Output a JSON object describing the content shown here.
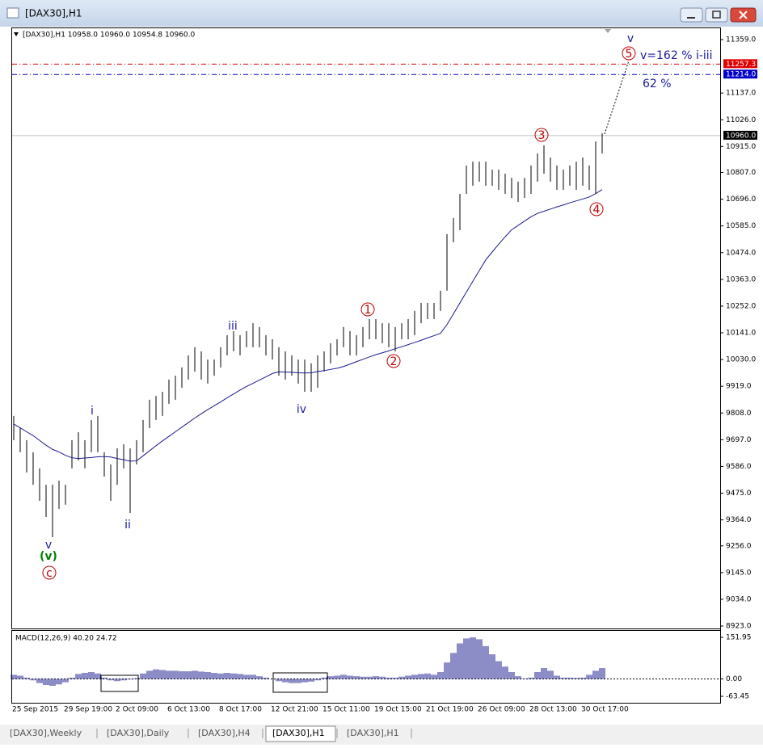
{
  "window": {
    "title": "[DAX30],H1"
  },
  "tabs": [
    "[DAX30],Weekly",
    "[DAX30],Daily",
    "[DAX30],H4",
    "[DAX30],H1",
    "[DAX30],H1"
  ],
  "active_tab": 3,
  "chart_data": [
    {
      "type": "ohlc-bar",
      "header": "[DAX30],H1  10958.0 10960.0 10954.8 10960.0",
      "color": "#000000",
      "ma_color": "#1a1a8c",
      "categories": [
        "25 Sep 2015",
        null,
        null,
        null,
        null,
        null,
        null,
        null,
        "29 Sep 19:00",
        null,
        null,
        null,
        null,
        null,
        null,
        null,
        "2 Oct 09:00",
        null,
        null,
        null,
        null,
        null,
        null,
        null,
        "6 Oct 13:00",
        null,
        null,
        null,
        null,
        null,
        null,
        null,
        "8 Oct 17:00",
        null,
        null,
        null,
        null,
        null,
        null,
        null,
        "12 Oct 21:00",
        null,
        null,
        null,
        null,
        null,
        null,
        null,
        "15 Oct 11:00",
        null,
        null,
        null,
        null,
        null,
        null,
        null,
        "19 Oct 15:00",
        null,
        null,
        null,
        null,
        null,
        null,
        null,
        "21 Oct 19:00",
        null,
        null,
        null,
        null,
        null,
        null,
        null,
        "26 Oct 09:00",
        null,
        null,
        null,
        null,
        null,
        null,
        null,
        "28 Oct 13:00",
        null,
        null,
        null,
        null,
        null,
        null,
        null,
        "30 Oct 17:00",
        null,
        null,
        null
      ],
      "high": [
        9796,
        9745,
        9695,
        9645,
        9578,
        9510,
        9510,
        9527,
        9510,
        9695,
        9728,
        9695,
        9779,
        9796,
        9645,
        9594,
        9661,
        9678,
        9661,
        9695,
        9779,
        9863,
        9879,
        9896,
        9947,
        9963,
        9997,
        10047,
        10081,
        10064,
        10030,
        10030,
        10081,
        10131,
        10148,
        10131,
        10148,
        10181,
        10165,
        10131,
        10114,
        10081,
        10064,
        10047,
        10030,
        10030,
        10014,
        10047,
        10064,
        10098,
        10114,
        10165,
        10148,
        10131,
        10165,
        10198,
        10198,
        10181,
        10181,
        10165,
        10181,
        10198,
        10232,
        10265,
        10265,
        10265,
        10316,
        10551,
        10618,
        10718,
        10836,
        10852,
        10852,
        10852,
        10819,
        10819,
        10802,
        10785,
        10769,
        10785,
        10836,
        10886,
        10920,
        10869,
        10836,
        10819,
        10836,
        10852,
        10869,
        10836,
        10936,
        10970
      ],
      "low": [
        9695,
        9645,
        9561,
        9510,
        9443,
        9376,
        9292,
        9410,
        9427,
        9578,
        9611,
        9578,
        9645,
        9645,
        9544,
        9443,
        9510,
        9578,
        9393,
        9594,
        9645,
        9745,
        9779,
        9796,
        9846,
        9863,
        9913,
        9947,
        9980,
        9947,
        9930,
        9963,
        9997,
        10047,
        10064,
        10047,
        10081,
        10081,
        10081,
        10047,
        10030,
        9963,
        9947,
        9963,
        9930,
        9896,
        9896,
        9913,
        9980,
        10014,
        10047,
        10081,
        10047,
        10047,
        10081,
        10114,
        10114,
        10098,
        10081,
        10064,
        10114,
        10114,
        10131,
        10181,
        10198,
        10198,
        10232,
        10316,
        10517,
        10567,
        10718,
        10752,
        10769,
        10752,
        10752,
        10735,
        10718,
        10701,
        10685,
        10701,
        10718,
        10769,
        10802,
        10769,
        10735,
        10735,
        10752,
        10735,
        10752,
        10735,
        10718,
        10886
      ],
      "ma": [
        9762,
        9746,
        9730,
        9714,
        9694,
        9674,
        9657,
        9646,
        9632,
        9622,
        9619,
        9621,
        9623,
        9626,
        9627,
        9625,
        9619,
        9614,
        9608,
        9609,
        9630,
        9651,
        9672,
        9692,
        9711,
        9730,
        9749,
        9768,
        9787,
        9805,
        9822,
        9838,
        9854,
        9871,
        9887,
        9903,
        9918,
        9931,
        9945,
        9958,
        9972,
        9979,
        9978,
        9977,
        9975,
        9974,
        9975,
        9980,
        9984,
        9989,
        9994,
        10001,
        10011,
        10021,
        10031,
        10041,
        10050,
        10058,
        10066,
        10075,
        10083,
        10092,
        10101,
        10110,
        10120,
        10129,
        10139,
        10175,
        10220,
        10265,
        10310,
        10355,
        10400,
        10444,
        10477,
        10509,
        10540,
        10569,
        10587,
        10605,
        10623,
        10637,
        10646,
        10655,
        10664,
        10672,
        10681,
        10689,
        10697,
        10705,
        10719,
        10736
      ],
      "ylim": [
        8913,
        11406
      ],
      "yticks": [
        {
          "value": 11359,
          "label": "11359.0"
        },
        {
          "value": 11137,
          "label": "11137.0"
        },
        {
          "value": 11026,
          "label": "11026.0"
        },
        {
          "value": 10915,
          "label": "10915.0"
        },
        {
          "value": 10807,
          "label": "10807.0"
        },
        {
          "value": 10696,
          "label": "10696.0"
        },
        {
          "value": 10585,
          "label": "10585.0"
        },
        {
          "value": 10474,
          "label": "10474.0"
        },
        {
          "value": 10363,
          "label": "10363.0"
        },
        {
          "value": 10252,
          "label": "10252.0"
        },
        {
          "value": 10141,
          "label": "10141.0"
        },
        {
          "value": 10030,
          "label": "10030.0"
        },
        {
          "value": 9919,
          "label": "9919.0"
        },
        {
          "value": 9808,
          "label": "9808.0"
        },
        {
          "value": 9697,
          "label": "9697.0"
        },
        {
          "value": 9586,
          "label": "9586.0"
        },
        {
          "value": 9475,
          "label": "9475.0"
        },
        {
          "value": 9364,
          "label": "9364.0"
        },
        {
          "value": 9256,
          "label": "9256.0"
        },
        {
          "value": 9145,
          "label": "9145.0"
        },
        {
          "value": 9034,
          "label": "9034.0"
        },
        {
          "value": 8923,
          "label": "8923.0"
        }
      ],
      "price_lines": [
        {
          "value": 11257.3,
          "label": "11257.3",
          "color": "#e00000"
        },
        {
          "value": 11214,
          "label": "11214.0",
          "color": "#0000c8"
        },
        {
          "value": 10960,
          "label": "10960.0",
          "color": "#000000"
        }
      ],
      "annotations": [
        {
          "text": "v",
          "color": "#1a1aa0"
        },
        {
          "text": "5",
          "color": "#c00000"
        },
        {
          "text": "v=162 % i-iii",
          "color": "#1a1aa0"
        },
        {
          "text": "62 %",
          "color": "#1a1aa0"
        },
        {
          "text": "3",
          "color": "#c00000"
        },
        {
          "text": "4",
          "color": "#c00000"
        },
        {
          "text": "1",
          "color": "#c00000"
        },
        {
          "text": "2",
          "color": "#c00000"
        },
        {
          "text": "iii",
          "color": "#1a1aa0"
        },
        {
          "text": "iv",
          "color": "#1a1aa0"
        },
        {
          "text": "i",
          "color": "#1a1aa0"
        },
        {
          "text": "ii",
          "color": "#1a1aa0"
        },
        {
          "text": "v",
          "color": "#1a1aa0"
        },
        {
          "text": "(v)",
          "color": "#008000"
        },
        {
          "text": "c",
          "color": "#c00000"
        }
      ]
    },
    {
      "type": "histogram",
      "title": "MACD(12,26,9) 40.20 24.72",
      "color": "#1a1a8c",
      "values": [
        15,
        12,
        5,
        -5,
        -15,
        -22,
        -25,
        -20,
        -12,
        5,
        18,
        22,
        25,
        20,
        5,
        -5,
        -8,
        -5,
        -2,
        3,
        20,
        30,
        35,
        33,
        30,
        30,
        28,
        28,
        30,
        27,
        25,
        22,
        20,
        22,
        20,
        18,
        15,
        15,
        10,
        5,
        0,
        -8,
        -12,
        -15,
        -15,
        -12,
        -10,
        -5,
        5,
        10,
        12,
        15,
        12,
        10,
        8,
        8,
        10,
        8,
        5,
        5,
        8,
        12,
        15,
        18,
        20,
        15,
        25,
        60,
        95,
        130,
        148,
        152,
        145,
        120,
        90,
        65,
        45,
        25,
        10,
        2,
        5,
        25,
        40,
        30,
        12,
        5,
        5,
        4,
        5,
        15,
        30,
        40
      ],
      "ylim": [
        -87,
        175.6
      ],
      "yticks": [
        151.95,
        {
          "value": 0,
          "label": "0.00"
        },
        -63.45
      ]
    }
  ]
}
